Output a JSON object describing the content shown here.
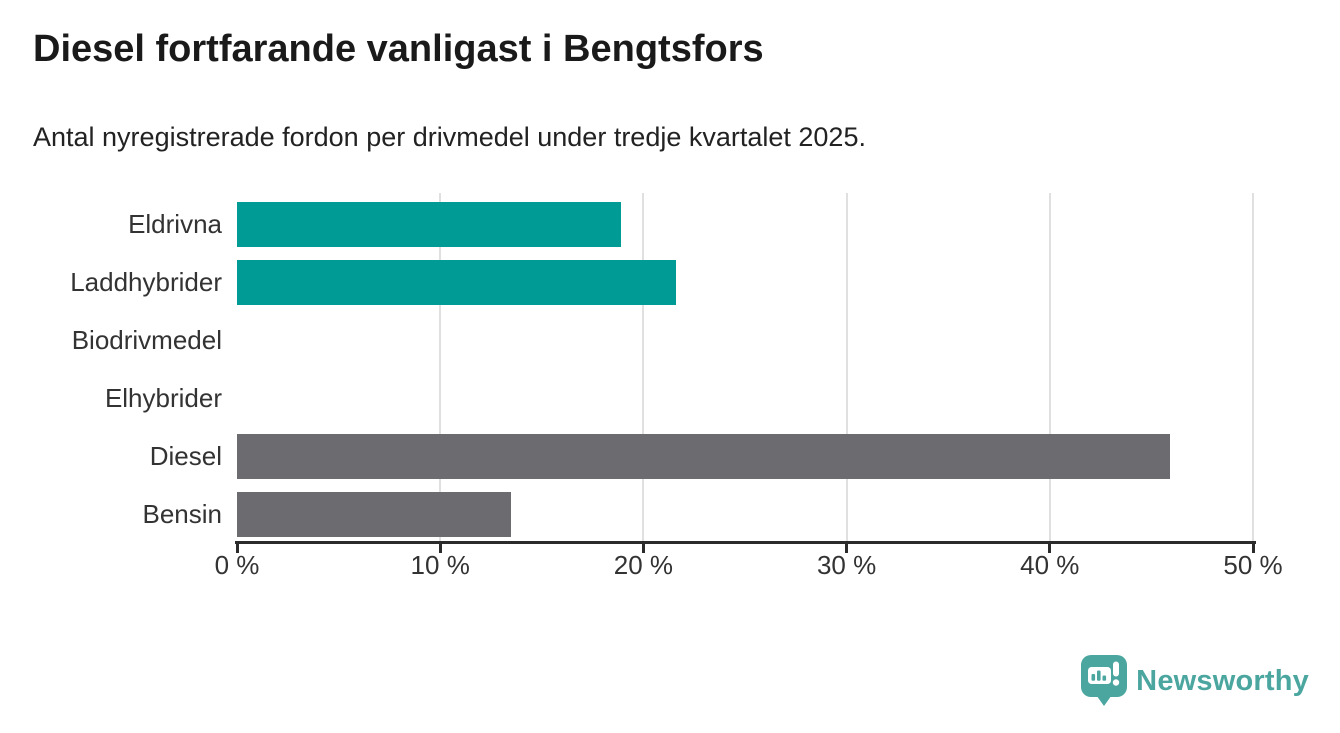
{
  "header": {
    "title": "Diesel fortfarande vanligast i Bengtsfors",
    "subtitle": "Antal nyregistrerade fordon per drivmedel under tredje kvartalet 2025."
  },
  "chart_data": {
    "type": "bar",
    "orientation": "horizontal",
    "title": "Diesel fortfarande vanligast i Bengtsfors",
    "subtitle": "Antal nyregistrerade fordon per drivmedel under tredje kvartalet 2025.",
    "categories": [
      "Eldrivna",
      "Laddhybrider",
      "Biodrivmedel",
      "Elhybrider",
      "Diesel",
      "Bensin"
    ],
    "values": [
      18.9,
      21.6,
      0,
      0,
      45.9,
      13.5
    ],
    "unit": "%",
    "bar_colors": [
      "#009b94",
      "#009b94",
      "#009b94",
      "#009b94",
      "#6c6c70",
      "#6c6c70"
    ],
    "xlim": [
      0,
      50
    ],
    "x_ticks": [
      0,
      10,
      20,
      30,
      40,
      50
    ],
    "x_tick_labels": [
      "0 %",
      "10 %",
      "20 %",
      "30 %",
      "40 %",
      "50 %"
    ],
    "grid": "vertical-lines",
    "legend": "none",
    "xlabel": "",
    "ylabel": ""
  },
  "footer": {
    "brand": "Newsworthy"
  },
  "colors": {
    "accent_teal": "#009b94",
    "neutral_gray": "#6c6c70",
    "gridline": "#e0e0e0",
    "axis": "#2b2b2b",
    "brand_teal": "#4ba6a0",
    "title_text": "#1a1a1a",
    "body_text": "#333333",
    "background": "#ffffff"
  }
}
